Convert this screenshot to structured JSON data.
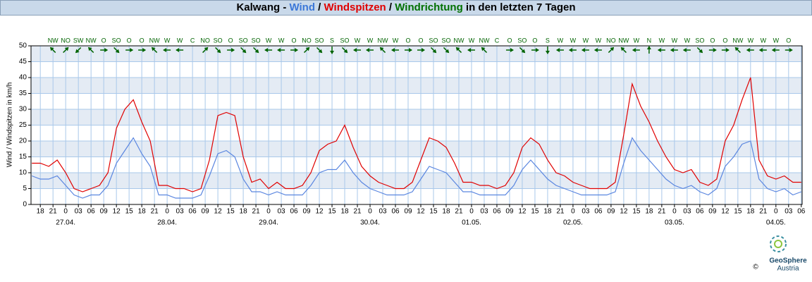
{
  "chart_data": {
    "type": "line",
    "title_parts": [
      {
        "text": "Kalwang - ",
        "color": "#000000"
      },
      {
        "text": "Wind",
        "color": "#3c78d8"
      },
      {
        "text": " / ",
        "color": "#000000"
      },
      {
        "text": "Windspitzen",
        "color": "#e00000"
      },
      {
        "text": " / ",
        "color": "#000000"
      },
      {
        "text": "Windrichtung",
        "color": "#007000"
      },
      {
        "text": " in den letzten 7 Tagen",
        "color": "#000000"
      }
    ],
    "y_label": "Wind / Windspitzen in km/h",
    "x": [
      -8,
      -6,
      -4,
      -2,
      0,
      2,
      4,
      6,
      8,
      10,
      12,
      14,
      16,
      18,
      20,
      22,
      24,
      26,
      28,
      30,
      32,
      34,
      36,
      38,
      40,
      42,
      44,
      46,
      48,
      50,
      52,
      54,
      56,
      58,
      60,
      62,
      64,
      66,
      68,
      70,
      72,
      74,
      76,
      78,
      80,
      82,
      84,
      86,
      88,
      90,
      92,
      94,
      96,
      98,
      100,
      102,
      104,
      106,
      108,
      110,
      112,
      114,
      116,
      118,
      120,
      122,
      124,
      126,
      128,
      130,
      132,
      134,
      136,
      138,
      140,
      142,
      144,
      146,
      148,
      150,
      152,
      154,
      156,
      158,
      160,
      162,
      164,
      166,
      168,
      170,
      172,
      174
    ],
    "series": [
      {
        "name": "Windspitzen",
        "color": "#e00000",
        "values": [
          13,
          13,
          12,
          14,
          10,
          5,
          4,
          5,
          6,
          10,
          24,
          30,
          33,
          26,
          20,
          6,
          6,
          5,
          5,
          4,
          5,
          14,
          28,
          29,
          28,
          15,
          7,
          8,
          5,
          7,
          5,
          5,
          6,
          10,
          17,
          19,
          20,
          25,
          18,
          12,
          9,
          7,
          6,
          5,
          5,
          7,
          14,
          21,
          20,
          18,
          13,
          7,
          7,
          6,
          6,
          5,
          6,
          10,
          18,
          21,
          19,
          14,
          10,
          9,
          7,
          6,
          5,
          5,
          5,
          7,
          22,
          38,
          31,
          26,
          20,
          15,
          11,
          10,
          11,
          7,
          6,
          8,
          20,
          25,
          33,
          40,
          14,
          9,
          8,
          9,
          7,
          7
        ]
      },
      {
        "name": "Wind",
        "color": "#5a86e0",
        "values": [
          9,
          8,
          8,
          9,
          6,
          3,
          2,
          3,
          3,
          6,
          13,
          17,
          21,
          16,
          12,
          3,
          3,
          2,
          2,
          2,
          3,
          9,
          16,
          17,
          15,
          8,
          4,
          4,
          3,
          4,
          3,
          3,
          3,
          6,
          10,
          11,
          11,
          14,
          10,
          7,
          5,
          4,
          3,
          3,
          3,
          4,
          8,
          12,
          11,
          10,
          7,
          4,
          4,
          3,
          3,
          3,
          3,
          6,
          11,
          14,
          11,
          8,
          6,
          5,
          4,
          3,
          3,
          3,
          3,
          4,
          13,
          21,
          17,
          14,
          11,
          8,
          6,
          5,
          6,
          4,
          3,
          5,
          12,
          15,
          19,
          20,
          8,
          5,
          4,
          5,
          3,
          4
        ]
      }
    ],
    "xlim": [
      -8.2,
      174.2
    ],
    "ylim": [
      0,
      50
    ],
    "yticks": [
      0,
      5,
      10,
      15,
      20,
      25,
      30,
      35,
      40,
      45,
      50
    ],
    "xticks": [
      {
        "value": -6,
        "label": "18"
      },
      {
        "value": -3,
        "label": "21"
      },
      0,
      {
        "value": 3,
        "label": "03"
      },
      {
        "value": 6,
        "label": "06"
      },
      {
        "value": 9,
        "label": "09"
      },
      12,
      15,
      18,
      21,
      {
        "value": 24,
        "label": "0"
      },
      {
        "value": 27,
        "label": "03"
      },
      {
        "value": 30,
        "label": "06"
      },
      {
        "value": 33,
        "label": "09"
      },
      {
        "value": 36,
        "label": "12"
      },
      {
        "value": 39,
        "label": "15"
      },
      {
        "value": 42,
        "label": "18"
      },
      {
        "value": 45,
        "label": "21"
      },
      {
        "value": 48,
        "label": "0"
      },
      {
        "value": 51,
        "label": "03"
      },
      {
        "value": 54,
        "label": "06"
      },
      {
        "value": 57,
        "label": "09"
      },
      {
        "value": 60,
        "label": "12"
      },
      {
        "value": 63,
        "label": "15"
      },
      {
        "value": 66,
        "label": "18"
      },
      {
        "value": 69,
        "label": "21"
      },
      {
        "value": 72,
        "label": "0"
      },
      {
        "value": 75,
        "label": "03"
      },
      {
        "value": 78,
        "label": "06"
      },
      {
        "value": 81,
        "label": "09"
      },
      {
        "value": 84,
        "label": "12"
      },
      {
        "value": 87,
        "label": "15"
      },
      {
        "value": 90,
        "label": "18"
      },
      {
        "value": 93,
        "label": "21"
      },
      {
        "value": 96,
        "label": "0"
      },
      {
        "value": 99,
        "label": "03"
      },
      {
        "value": 102,
        "label": "06"
      },
      {
        "value": 105,
        "label": "09"
      },
      {
        "value": 108,
        "label": "12"
      },
      {
        "value": 111,
        "label": "15"
      },
      {
        "value": 114,
        "label": "18"
      },
      {
        "value": 117,
        "label": "21"
      },
      {
        "value": 120,
        "label": "0"
      },
      {
        "value": 123,
        "label": "03"
      },
      {
        "value": 126,
        "label": "06"
      },
      {
        "value": 129,
        "label": "09"
      },
      {
        "value": 132,
        "label": "12"
      },
      {
        "value": 135,
        "label": "15"
      },
      {
        "value": 138,
        "label": "18"
      },
      {
        "value": 141,
        "label": "21"
      },
      {
        "value": 144,
        "label": "0"
      },
      {
        "value": 147,
        "label": "03"
      },
      {
        "value": 150,
        "label": "06"
      },
      {
        "value": 153,
        "label": "09"
      },
      {
        "value": 156,
        "label": "12"
      },
      {
        "value": 159,
        "label": "15"
      },
      {
        "value": 162,
        "label": "18"
      },
      {
        "value": 165,
        "label": "21"
      },
      {
        "value": 168,
        "label": "0"
      },
      {
        "value": 171,
        "label": "03"
      },
      {
        "value": 174,
        "label": "06"
      }
    ],
    "date_ticks": [
      {
        "value": 0,
        "label": "27.04."
      },
      {
        "value": 24,
        "label": "28.04."
      },
      {
        "value": 48,
        "label": "29.04."
      },
      {
        "value": 72,
        "label": "30.04."
      },
      {
        "value": 96,
        "label": "01.05."
      },
      {
        "value": 120,
        "label": "02.05."
      },
      {
        "value": 144,
        "label": "03.05."
      },
      {
        "value": 168,
        "label": "04.05."
      }
    ],
    "direction": {
      "color": "#006400",
      "x": [
        -3,
        0,
        3,
        6,
        9,
        12,
        15,
        18,
        21,
        24,
        27,
        30,
        33,
        36,
        39,
        42,
        45,
        48,
        51,
        54,
        57,
        60,
        63,
        66,
        69,
        72,
        75,
        78,
        81,
        84,
        87,
        90,
        93,
        96,
        99,
        102,
        105,
        108,
        111,
        114,
        117,
        120,
        123,
        126,
        129,
        132,
        135,
        138,
        141,
        144,
        147,
        150,
        153,
        156,
        159,
        162,
        165,
        168,
        171
      ],
      "labels": [
        "NW",
        "NO",
        "SW",
        "NW",
        "O",
        "SO",
        "O",
        "O",
        "NW",
        "W",
        "W",
        "C",
        "NO",
        "SO",
        "O",
        "SO",
        "SO",
        "W",
        "W",
        "O",
        "NO",
        "SO",
        "S",
        "SO",
        "W",
        "W",
        "NW",
        "W",
        "O",
        "O",
        "SO",
        "SO",
        "NW",
        "W",
        "NW",
        "C",
        "O",
        "SO",
        "O",
        "S",
        "W",
        "W",
        "W",
        "W",
        "NO",
        "NW",
        "W",
        "N",
        "W",
        "W",
        "W",
        "SO",
        "O",
        "O",
        "NW",
        "W",
        "W",
        "W",
        "O"
      ]
    },
    "grid": true,
    "logo": {
      "name": "GeoSphere",
      "sub": "Austria",
      "copyright": "©"
    }
  }
}
